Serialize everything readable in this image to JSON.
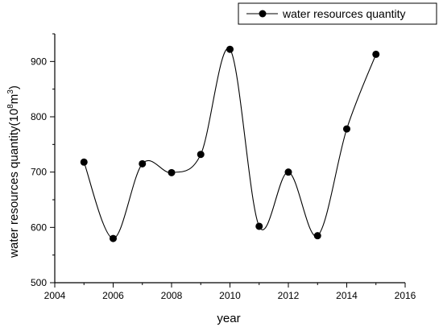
{
  "chart_data": {
    "type": "line",
    "xlabel": "year",
    "ylabel": "water resources quantity(10",
    "ylabel_sup1": "8",
    "ylabel_mid": "m",
    "ylabel_sup2": "3",
    "ylabel_end": ")",
    "xlim": [
      2004,
      2016
    ],
    "ylim": [
      500,
      950
    ],
    "x_ticks": [
      2004,
      2006,
      2008,
      2010,
      2012,
      2014,
      2016
    ],
    "y_ticks": [
      500,
      600,
      700,
      800,
      900
    ],
    "legend": {
      "position": "top-right"
    },
    "grid": false,
    "series": [
      {
        "name": "water resources quantity",
        "smooth": true,
        "x": [
          2005,
          2006,
          2007,
          2008,
          2009,
          2010,
          2011,
          2012,
          2013,
          2014,
          2015
        ],
        "y": [
          718,
          580,
          715,
          699,
          732,
          922,
          602,
          700,
          585,
          778,
          913
        ]
      }
    ]
  },
  "colors": {
    "line": "#000000",
    "marker": "#000000",
    "axis": "#000000"
  }
}
